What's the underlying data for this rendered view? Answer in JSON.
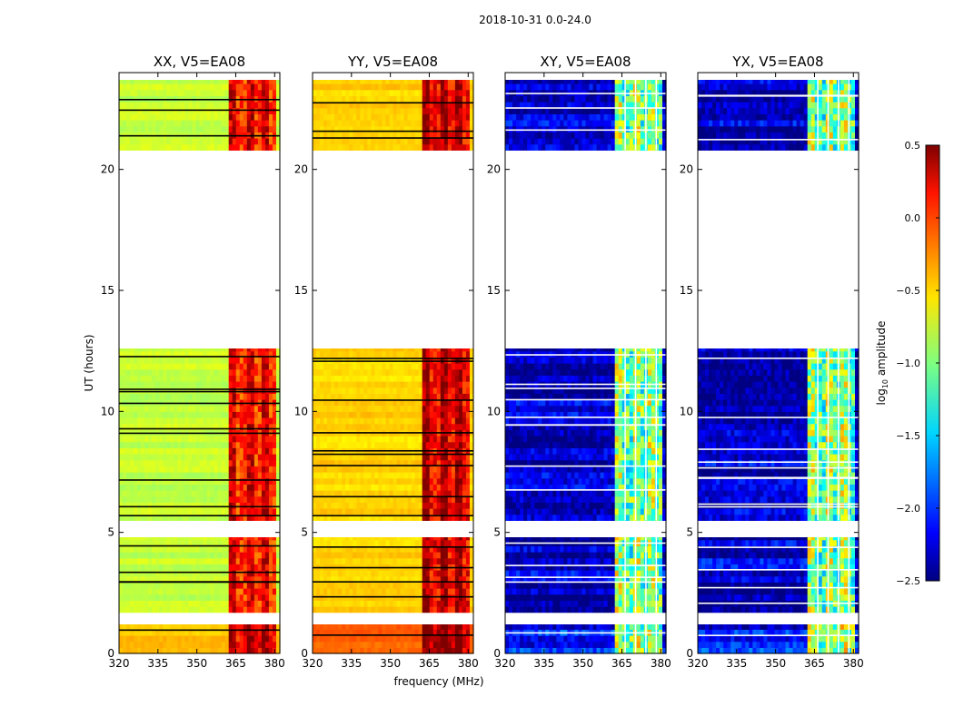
{
  "suptitle": "2018-10-31 0.0-24.0",
  "chart_data": {
    "type": "heatmap",
    "xlabel": "frequency (MHz)",
    "ylabel": "UT (hours)",
    "xlim": [
      320,
      382
    ],
    "ylim": [
      0,
      24
    ],
    "xticks": [
      320,
      335,
      350,
      365,
      380
    ],
    "yticks": [
      0,
      5,
      10,
      15,
      20
    ],
    "colorbar": {
      "label": "log",
      "label_sub": "10",
      "label_rest": " amplitude",
      "range": [
        -2.5,
        0.5
      ],
      "ticks": [
        "0.5",
        "0.0",
        "−0.5",
        "−1.0",
        "−1.5",
        "−2.0",
        "−2.5"
      ],
      "tick_values": [
        0.5,
        0.0,
        -0.5,
        -1.0,
        -1.5,
        -2.0,
        -2.5
      ]
    },
    "data_time_blocks_ut": [
      [
        0.0,
        1.2
      ],
      [
        1.7,
        4.8
      ],
      [
        5.5,
        12.6
      ],
      [
        20.8,
        23.7
      ]
    ],
    "rfi_band_mhz": [
      362,
      380
    ],
    "panels": [
      {
        "title": "XX, V5=EA08",
        "base_level": -0.8,
        "rfi_level": 0.1
      },
      {
        "title": "YY, V5=EA08",
        "base_level": -0.5,
        "rfi_level": 0.25
      },
      {
        "title": "XY, V5=EA08",
        "base_level": -2.3,
        "rfi_level": -1.0
      },
      {
        "title": "YX, V5=EA08",
        "base_level": -2.3,
        "rfi_level": -1.0
      }
    ]
  }
}
